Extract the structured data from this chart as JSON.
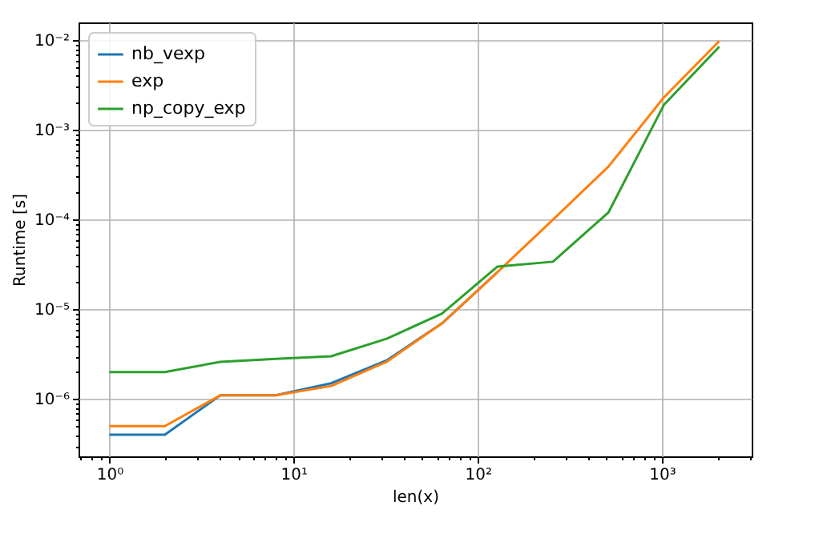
{
  "chart_data": {
    "type": "line",
    "xlabel": "len(x)",
    "ylabel": "Runtime [s]",
    "log": "xy",
    "grid": true,
    "legend": "top left",
    "x": [
      1,
      2,
      4,
      8,
      16,
      32,
      64,
      128,
      256,
      512,
      1024,
      2048
    ],
    "series": [
      {
        "name": "nb_vexp",
        "color": "#1f77b4",
        "values": [
          4e-07,
          4e-07,
          1.1e-06,
          1.1e-06,
          1.5e-06,
          2.7e-06,
          7e-06,
          2.6e-05,
          null,
          null,
          null,
          null
        ]
      },
      {
        "name": "exp",
        "color": "#ff7f0e",
        "values": [
          5e-07,
          5e-07,
          1.1e-06,
          1.1e-06,
          1.4e-06,
          2.6e-06,
          7e-06,
          2.6e-05,
          0.0001,
          0.00039,
          0.0023,
          0.0098
        ]
      },
      {
        "name": "np_copy_exp",
        "color": "#2ca02c",
        "values": [
          2e-06,
          2e-06,
          2.6e-06,
          2.8e-06,
          3e-06,
          4.7e-06,
          9e-06,
          3e-05,
          3.4e-05,
          0.00012,
          0.0019,
          0.0085
        ]
      }
    ],
    "xlim": [
      0.68,
      3070
    ],
    "xticks": [
      {
        "value": 0.7,
        "label": null
      },
      {
        "value": 0.8,
        "label": null
      },
      {
        "value": 0.9,
        "label": null
      },
      {
        "value": 1,
        "label": "10⁰"
      },
      {
        "value": 2,
        "label": null
      },
      {
        "value": 3,
        "label": null
      },
      {
        "value": 4,
        "label": null
      },
      {
        "value": 5,
        "label": null
      },
      {
        "value": 6,
        "label": null
      },
      {
        "value": 7,
        "label": null
      },
      {
        "value": 8,
        "label": null
      },
      {
        "value": 9,
        "label": null
      },
      {
        "value": 10,
        "label": "10¹"
      },
      {
        "value": 20,
        "label": null
      },
      {
        "value": 30,
        "label": null
      },
      {
        "value": 40,
        "label": null
      },
      {
        "value": 50,
        "label": null
      },
      {
        "value": 60,
        "label": null
      },
      {
        "value": 70,
        "label": null
      },
      {
        "value": 80,
        "label": null
      },
      {
        "value": 90,
        "label": null
      },
      {
        "value": 100,
        "label": "10²"
      },
      {
        "value": 200,
        "label": null
      },
      {
        "value": 300,
        "label": null
      },
      {
        "value": 400,
        "label": null
      },
      {
        "value": 500,
        "label": null
      },
      {
        "value": 600,
        "label": null
      },
      {
        "value": 700,
        "label": null
      },
      {
        "value": 800,
        "label": null
      },
      {
        "value": 900,
        "label": null
      },
      {
        "value": 1000,
        "label": "10³"
      },
      {
        "value": 2000,
        "label": null
      },
      {
        "value": 3000,
        "label": null
      }
    ],
    "ylim": [
      2.3e-07,
      0.0158
    ],
    "yticks": [
      {
        "value": 3e-07,
        "label": null
      },
      {
        "value": 4e-07,
        "label": null
      },
      {
        "value": 5e-07,
        "label": null
      },
      {
        "value": 6e-07,
        "label": null
      },
      {
        "value": 7e-07,
        "label": null
      },
      {
        "value": 8e-07,
        "label": null
      },
      {
        "value": 9e-07,
        "label": null
      },
      {
        "value": 1e-06,
        "label": "10⁻⁶"
      },
      {
        "value": 2e-06,
        "label": null
      },
      {
        "value": 3e-06,
        "label": null
      },
      {
        "value": 4e-06,
        "label": null
      },
      {
        "value": 5e-06,
        "label": null
      },
      {
        "value": 6e-06,
        "label": null
      },
      {
        "value": 7e-06,
        "label": null
      },
      {
        "value": 8e-06,
        "label": null
      },
      {
        "value": 9e-06,
        "label": null
      },
      {
        "value": 1e-05,
        "label": "10⁻⁵"
      },
      {
        "value": 2e-05,
        "label": null
      },
      {
        "value": 3e-05,
        "label": null
      },
      {
        "value": 4e-05,
        "label": null
      },
      {
        "value": 5e-05,
        "label": null
      },
      {
        "value": 6e-05,
        "label": null
      },
      {
        "value": 7e-05,
        "label": null
      },
      {
        "value": 8e-05,
        "label": null
      },
      {
        "value": 9e-05,
        "label": null
      },
      {
        "value": 0.0001,
        "label": "10⁻⁴"
      },
      {
        "value": 0.0002,
        "label": null
      },
      {
        "value": 0.0003,
        "label": null
      },
      {
        "value": 0.0004,
        "label": null
      },
      {
        "value": 0.0005,
        "label": null
      },
      {
        "value": 0.0006,
        "label": null
      },
      {
        "value": 0.0007,
        "label": null
      },
      {
        "value": 0.0008,
        "label": null
      },
      {
        "value": 0.0009,
        "label": null
      },
      {
        "value": 0.001,
        "label": "10⁻³"
      },
      {
        "value": 0.002,
        "label": null
      },
      {
        "value": 0.003,
        "label": null
      },
      {
        "value": 0.004,
        "label": null
      },
      {
        "value": 0.005,
        "label": null
      },
      {
        "value": 0.006,
        "label": null
      },
      {
        "value": 0.007,
        "label": null
      },
      {
        "value": 0.008,
        "label": null
      },
      {
        "value": 0.009,
        "label": null
      },
      {
        "value": 0.01,
        "label": "10⁻²"
      }
    ]
  }
}
